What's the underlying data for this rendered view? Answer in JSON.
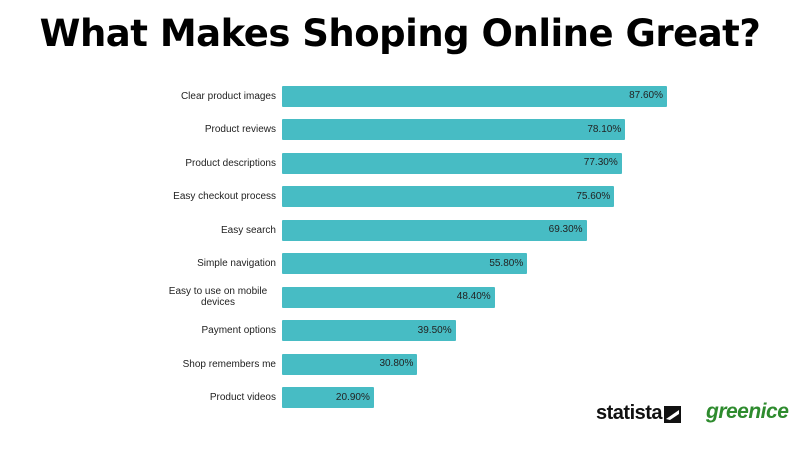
{
  "chart_data": {
    "type": "bar",
    "orientation": "horizontal",
    "title": "What Makes Shoping Online Great?",
    "categories": [
      "Clear product images",
      "Product reviews",
      "Product descriptions",
      "Easy checkout process",
      "Easy search",
      "Simple navigation",
      "Easy to use on mobile devices",
      "Payment options",
      "Shop remembers me",
      "Product videos"
    ],
    "values": [
      87.6,
      78.1,
      77.3,
      75.6,
      69.3,
      55.8,
      48.4,
      39.5,
      30.8,
      20.9
    ],
    "value_labels": [
      "87.60%",
      "78.10%",
      "77.30%",
      "75.60%",
      "69.30%",
      "55.80%",
      "48.40%",
      "39.50%",
      "30.80%",
      "20.90%"
    ],
    "color": "#47bcc4"
  },
  "logos": {
    "source": "statista",
    "brand": "greenice"
  }
}
